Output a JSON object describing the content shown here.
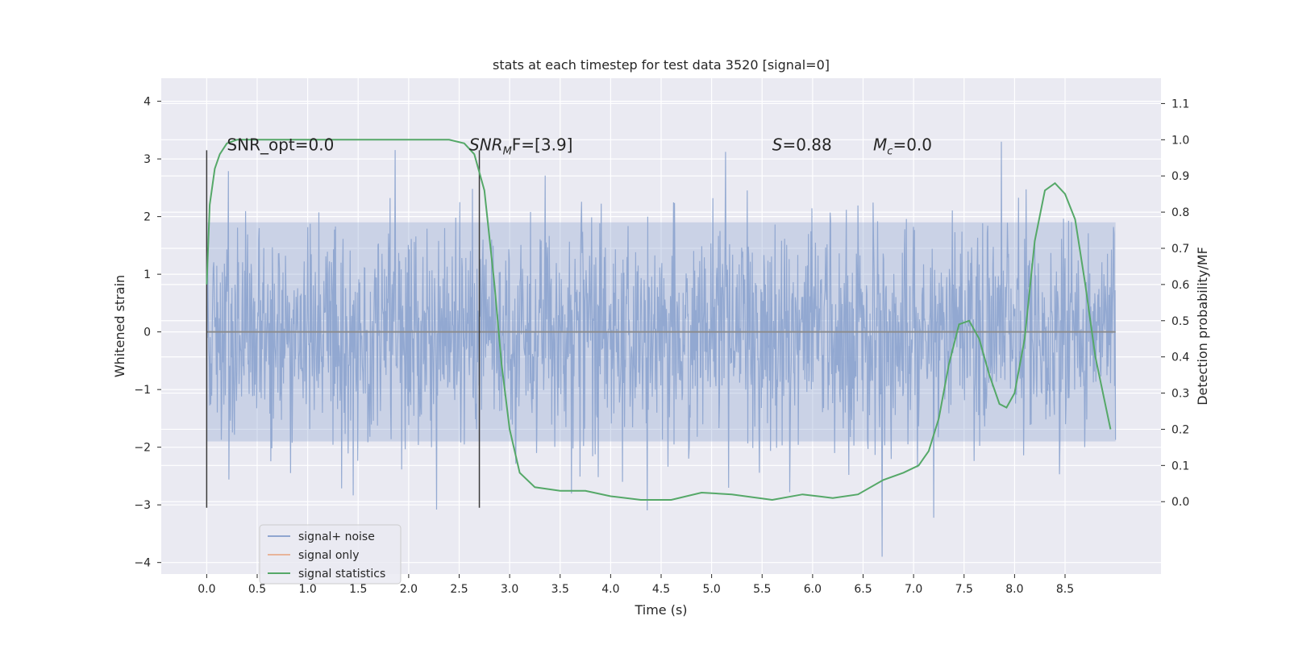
{
  "chart_data": {
    "type": "line",
    "title": "stats at each timestep for test data 3520 [signal=0]",
    "xlabel": "Time (s)",
    "ylabel": "Whitened strain",
    "ylabel_right": "Detection probability/MF",
    "xlim": [
      -0.45,
      9.45
    ],
    "ylim": [
      -4.2,
      4.4
    ],
    "ylim_right": [
      -0.2,
      1.17
    ],
    "x_ticks": [
      "0.0",
      "0.5",
      "1.0",
      "1.5",
      "2.0",
      "2.5",
      "3.0",
      "3.5",
      "4.0",
      "4.5",
      "5.0",
      "5.5",
      "6.0",
      "6.5",
      "7.0",
      "7.5",
      "8.0",
      "8.5"
    ],
    "y_ticks": [
      "−4",
      "−3",
      "−2",
      "−1",
      "0",
      "1",
      "2",
      "3",
      "4"
    ],
    "y_ticks_right": [
      "0.0",
      "0.1",
      "0.2",
      "0.3",
      "0.4",
      "0.5",
      "0.6",
      "0.7",
      "0.8",
      "0.9",
      "1.0",
      "1.1"
    ],
    "grid": true,
    "legend_position": "lower-left",
    "annotations": {
      "snr_opt": "SNR_opt=0.0",
      "snr_mf_base": "SNR",
      "snr_mf_sub": "M",
      "snr_mf_rest": "F=[3.9]",
      "s_stat_italic": "S",
      "s_stat_rest": "=0.88",
      "mc_base": "M",
      "mc_sub": "c",
      "mc_rest": "=0.0"
    },
    "series": [
      {
        "name": "signal+ noise",
        "color": "#8fa6d0",
        "x_range": [
          0.0,
          9.0
        ],
        "typical_range": [
          -1.9,
          1.9
        ],
        "extremes": [
          -3.9,
          4.0
        ]
      },
      {
        "name": "signal only",
        "color": "#e8b49a",
        "x": [
          0.0,
          9.0
        ],
        "y": [
          0.0,
          0.0
        ]
      },
      {
        "name": "signal statistics",
        "color": "#55a868",
        "axis": "right",
        "x": [
          0.0,
          0.03,
          0.08,
          0.13,
          0.2,
          0.3,
          0.5,
          1.0,
          1.5,
          2.0,
          2.4,
          2.55,
          2.65,
          2.75,
          2.85,
          2.92,
          3.0,
          3.1,
          3.25,
          3.5,
          3.75,
          4.0,
          4.3,
          4.6,
          4.9,
          5.2,
          5.6,
          5.9,
          6.2,
          6.45,
          6.7,
          6.9,
          7.05,
          7.15,
          7.25,
          7.35,
          7.45,
          7.55,
          7.65,
          7.75,
          7.85,
          7.92,
          8.0,
          8.1,
          8.2,
          8.3,
          8.4,
          8.5,
          8.6,
          8.7,
          8.8,
          8.95
        ],
        "y": [
          0.6,
          0.82,
          0.92,
          0.96,
          0.99,
          1.0,
          1.0,
          1.0,
          1.0,
          1.0,
          1.0,
          0.99,
          0.96,
          0.86,
          0.6,
          0.38,
          0.2,
          0.08,
          0.04,
          0.03,
          0.03,
          0.015,
          0.005,
          0.005,
          0.025,
          0.02,
          0.005,
          0.02,
          0.01,
          0.02,
          0.06,
          0.08,
          0.1,
          0.14,
          0.23,
          0.38,
          0.49,
          0.5,
          0.45,
          0.35,
          0.27,
          0.26,
          0.3,
          0.45,
          0.72,
          0.86,
          0.88,
          0.85,
          0.78,
          0.6,
          0.4,
          0.2
        ]
      }
    ],
    "vertical_lines": [
      0.0,
      2.7
    ]
  }
}
